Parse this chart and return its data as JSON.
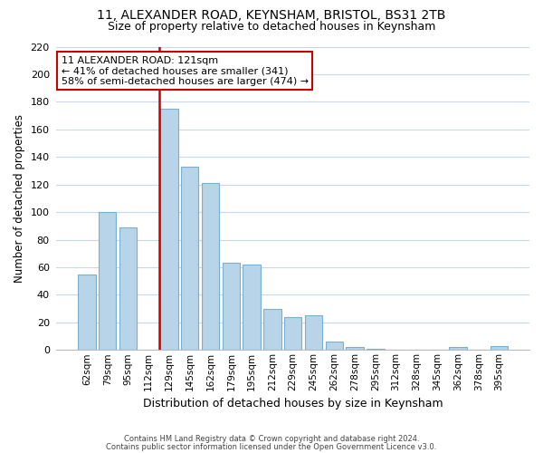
{
  "title": "11, ALEXANDER ROAD, KEYNSHAM, BRISTOL, BS31 2TB",
  "subtitle": "Size of property relative to detached houses in Keynsham",
  "xlabel": "Distribution of detached houses by size in Keynsham",
  "ylabel": "Number of detached properties",
  "categories": [
    "62sqm",
    "79sqm",
    "95sqm",
    "112sqm",
    "129sqm",
    "145sqm",
    "162sqm",
    "179sqm",
    "195sqm",
    "212sqm",
    "229sqm",
    "245sqm",
    "262sqm",
    "278sqm",
    "295sqm",
    "312sqm",
    "328sqm",
    "345sqm",
    "362sqm",
    "378sqm",
    "395sqm"
  ],
  "values": [
    55,
    100,
    89,
    0,
    175,
    133,
    121,
    63,
    62,
    30,
    24,
    25,
    6,
    2,
    1,
    0,
    0,
    0,
    2,
    0,
    3
  ],
  "bar_color": "#b8d4e8",
  "bar_edge_color": "#7aafd4",
  "vline_color": "#cc0000",
  "ylim": [
    0,
    220
  ],
  "yticks": [
    0,
    20,
    40,
    60,
    80,
    100,
    120,
    140,
    160,
    180,
    200,
    220
  ],
  "annotation_title": "11 ALEXANDER ROAD: 121sqm",
  "annotation_line1": "← 41% of detached houses are smaller (341)",
  "annotation_line2": "58% of semi-detached houses are larger (474) →",
  "annotation_box_color": "#ffffff",
  "annotation_box_edge": "#cc0000",
  "footer1": "Contains HM Land Registry data © Crown copyright and database right 2024.",
  "footer2": "Contains public sector information licensed under the Open Government Licence v3.0.",
  "background_color": "#ffffff",
  "grid_color": "#c8d8e8",
  "title_fontsize": 10,
  "subtitle_fontsize": 9
}
